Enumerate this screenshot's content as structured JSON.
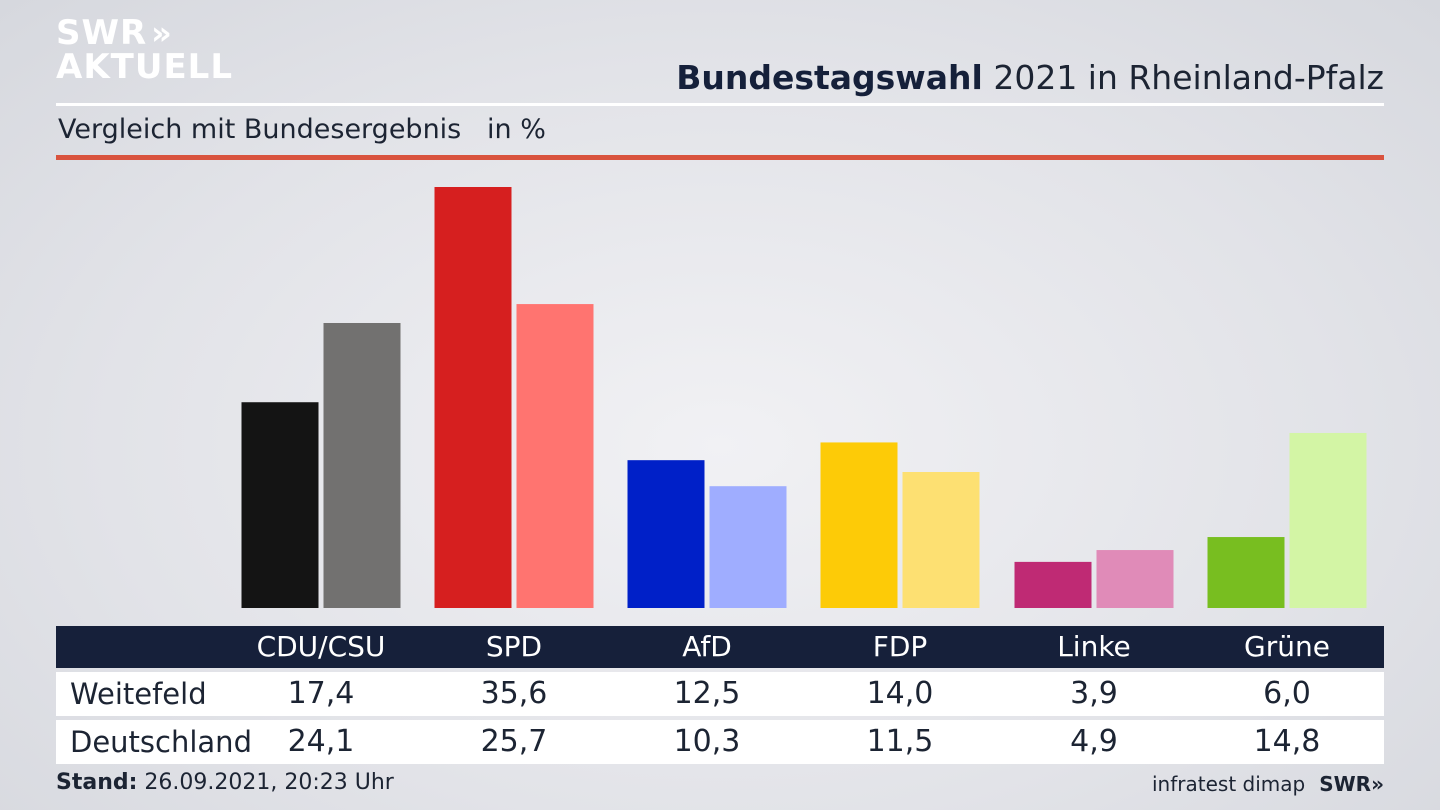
{
  "logo": {
    "line1": "SWR",
    "line2": "AKTUELL",
    "chevrons": "»"
  },
  "title_bold": "Bundestagswahl",
  "title_rest": " 2021 in Rheinland-Pfalz",
  "subtitle": "Vergleich mit Bundesergebnis   in %",
  "footer": {
    "stand_label": "Stand:",
    "stand_value": " 26.09.2021, 20:23 Uhr"
  },
  "source": {
    "text": "infratest dimap",
    "brand": "SWR»"
  },
  "chart_data": {
    "type": "bar",
    "categories": [
      "CDU/CSU",
      "SPD",
      "AfD",
      "FDP",
      "Linke",
      "Grüne"
    ],
    "series": [
      {
        "name": "Weitefeld",
        "values": [
          17.4,
          35.6,
          12.5,
          14.0,
          3.9,
          6.0
        ],
        "labels": [
          "17,4",
          "35,6",
          "12,5",
          "14,0",
          "3,9",
          "6,0"
        ]
      },
      {
        "name": "Deutschland",
        "values": [
          24.1,
          25.7,
          10.3,
          11.5,
          4.9,
          14.8
        ],
        "labels": [
          "24,1",
          "25,7",
          "10,3",
          "11,5",
          "4,9",
          "14,8"
        ]
      }
    ],
    "colors": {
      "Weitefeld": [
        "#141414",
        "#d61f1f",
        "#0020c8",
        "#fdcb07",
        "#bf2a74",
        "#78be20"
      ],
      "Deutschland": [
        "#727170",
        "#ff7470",
        "#9fadff",
        "#fde072",
        "#e08bb8",
        "#d3f5a5"
      ]
    },
    "ylim": [
      0,
      35.6
    ],
    "grid": false,
    "legend": "table-below"
  }
}
